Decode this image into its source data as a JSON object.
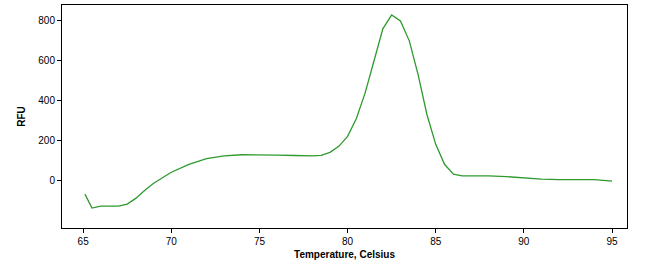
{
  "chart_data": {
    "type": "line",
    "x_label": "Temperature, Celsius",
    "y_label": "RFU",
    "x": [
      65.1,
      65.5,
      66,
      67,
      67.5,
      68,
      68.5,
      69,
      70,
      71,
      72,
      73,
      74,
      75,
      76,
      77,
      78,
      78.5,
      79,
      79.5,
      80,
      80.5,
      81,
      81.5,
      82,
      82.5,
      83,
      83.5,
      84,
      84.5,
      85,
      85.5,
      86,
      86.5,
      87,
      88,
      89,
      90,
      91,
      92,
      93,
      94,
      95
    ],
    "values": [
      -70,
      -140,
      -130,
      -130,
      -120,
      -90,
      -50,
      -15,
      40,
      80,
      108,
      122,
      128,
      128,
      126,
      124,
      122,
      125,
      140,
      170,
      220,
      310,
      440,
      600,
      760,
      830,
      800,
      700,
      530,
      330,
      180,
      80,
      30,
      22,
      22,
      22,
      18,
      10,
      5,
      3,
      3,
      3,
      -5
    ],
    "color": "#2e9a2e",
    "xlim": [
      63.8,
      95.85
    ],
    "xticks": [
      65,
      70,
      75,
      80,
      85,
      90,
      95
    ],
    "ylim": [
      -240,
      880
    ],
    "yticks": [
      0,
      200,
      400,
      600,
      800
    ],
    "grid": false
  }
}
